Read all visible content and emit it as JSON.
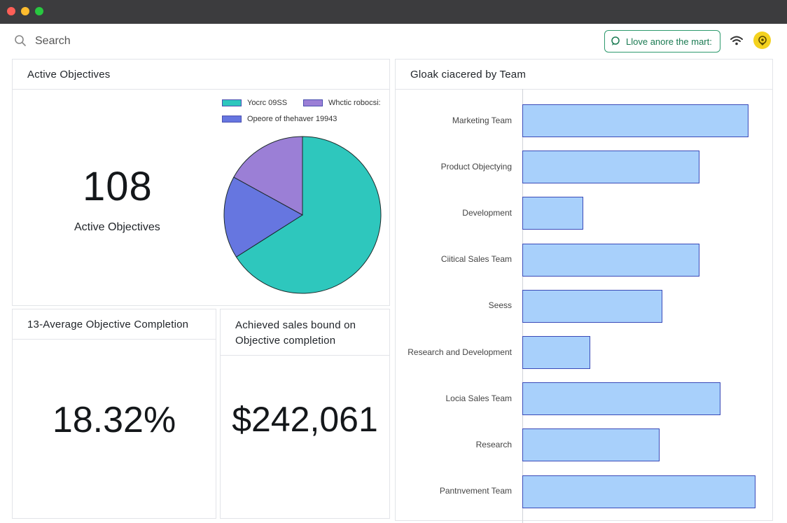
{
  "toolbar": {
    "search_placeholder": "Search",
    "promo_label": "Llove anore the mart:",
    "accent_color": "#2e9a6e",
    "avatar_color": "#f4d21f"
  },
  "active_objectives": {
    "title": "Active Objectives",
    "value": "108",
    "label": "Active Objectives"
  },
  "average_completion": {
    "title": "13-Average Objective Completion",
    "value": "18.32%"
  },
  "sales": {
    "title": "Achieved sales bound on Objective completion",
    "value": "$242,061"
  },
  "chart_data": [
    {
      "type": "pie",
      "legend": [
        {
          "label": "Yocrc 09SS",
          "color": "#2ec7bd"
        },
        {
          "label": "Whctic robocsi:",
          "color": "#9b7fd6"
        },
        {
          "label": "Opeore of thehaver 19943",
          "color": "#6676e0"
        }
      ],
      "slices": [
        {
          "label": "Yocrc 09SS",
          "value": 66,
          "color": "#2ec7bd"
        },
        {
          "label": "Opeore of thehaver 19943",
          "value": 17,
          "color": "#6676e0"
        },
        {
          "label": "Whctic robocsi:",
          "value": 17,
          "color": "#9b7fd6"
        }
      ]
    },
    {
      "type": "bar",
      "orientation": "horizontal",
      "title": "Gloak ciacered by Team",
      "categories": [
        "Marketing Team",
        "Product Objectying",
        "Development",
        "Ciitical Sales Team",
        "Seess",
        "Research and Development",
        "Locia Sales Team",
        "Research",
        "Pantnvement Team"
      ],
      "values": [
        97,
        76,
        26,
        76,
        60,
        29,
        85,
        59,
        100
      ],
      "xlim": [
        0,
        100
      ],
      "bar_color": "#a8d0fb",
      "border_color": "#3a4ab8"
    }
  ]
}
